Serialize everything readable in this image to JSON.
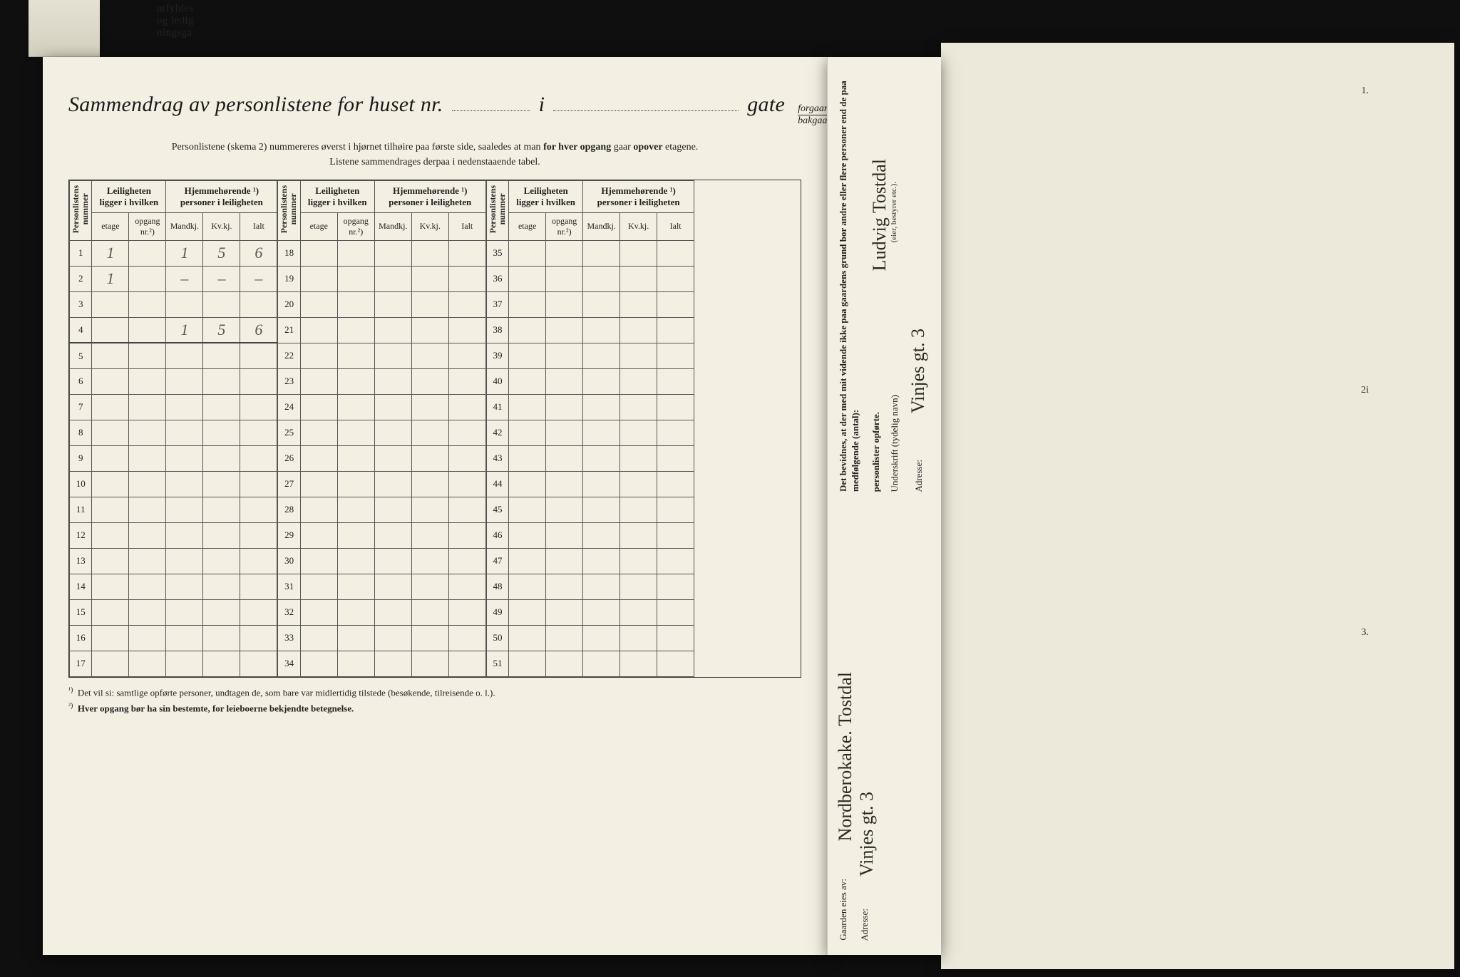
{
  "background_color": "#1a1a1a",
  "paper_color": "#f3efe2",
  "paper_edge_color": "#ece8da",
  "fold_text": "utfyldes\nog ledig\nningsga",
  "title": {
    "part1": "Sammendrag av personlistene for huset nr.",
    "part2": "i",
    "part3": "gate",
    "forgaard": "forgaard",
    "bakgaard": "bakgaard"
  },
  "intro": {
    "line1_a": "Personlistene (skema 2) nummereres øverst i hjørnet tilhøire paa første side, saaledes at man ",
    "line1_b": "for hver opgang",
    "line1_c": " gaar ",
    "line1_d": "opover",
    "line1_e": " etagene.",
    "line2": "Listene sammendrages derpaa i nedenstaaende tabel."
  },
  "headers": {
    "personlistens_nummer": "Personlistens\nnummer",
    "leiligheten": "Leiligheten\nligger i hvilken",
    "hjemmehorende": "Hjemmehørende ¹)\npersoner i leiligheten",
    "etage": "etage",
    "opgang": "opgang\nnr.²)",
    "mandkj": "Mandkj.",
    "kvkj": "Kv.kj.",
    "ialt": "Ialt"
  },
  "blocks": [
    {
      "rows_from": 1,
      "rows_to": 17
    },
    {
      "rows_from": 18,
      "rows_to": 34
    },
    {
      "rows_from": 35,
      "rows_to": 51
    }
  ],
  "handwritten_rows": {
    "1": {
      "etage": "1",
      "mandkj": "1",
      "kvkj": "5",
      "ialt": "6"
    },
    "2": {
      "etage": "1",
      "mandkj": "–",
      "kvkj": "–",
      "ialt": "–"
    },
    "4": {
      "mandkj": "1",
      "kvkj": "5",
      "ialt": "6"
    }
  },
  "footnotes": {
    "fn1": "Det vil si: samtlige opførte personer, undtagen de, som bare var midlertidig tilstede (besøkende, tilreisende o. l.).",
    "fn2": "Hver opgang bør ha sin bestemte, for leieboerne bekjendte betegnelse."
  },
  "right_strip": {
    "gaarden_eies_av": "Gaarden eies av:",
    "owner_hw": "Nordberokake. Tostdal",
    "adresse1_label": "Adresse:",
    "adresse1_hw": "Vinjes gt. 3",
    "bevidnes": "Det bevidnes, at der med mit vidende ikke paa gaardens grund bor andre eller flere personer end de paa medfølgende (antal):",
    "personlister": "personlister opførte.",
    "underskrift_label": "Underskrift (tydelig navn)",
    "underskrift_note": "(eier, bestyrer etc.).",
    "underskrift_hw": "Ludvig Tostdal",
    "adresse2_label": "Adresse:",
    "adresse2_hw": "Vinjes gt. 3"
  },
  "edge_marks": [
    "1.",
    "2i",
    "3."
  ]
}
